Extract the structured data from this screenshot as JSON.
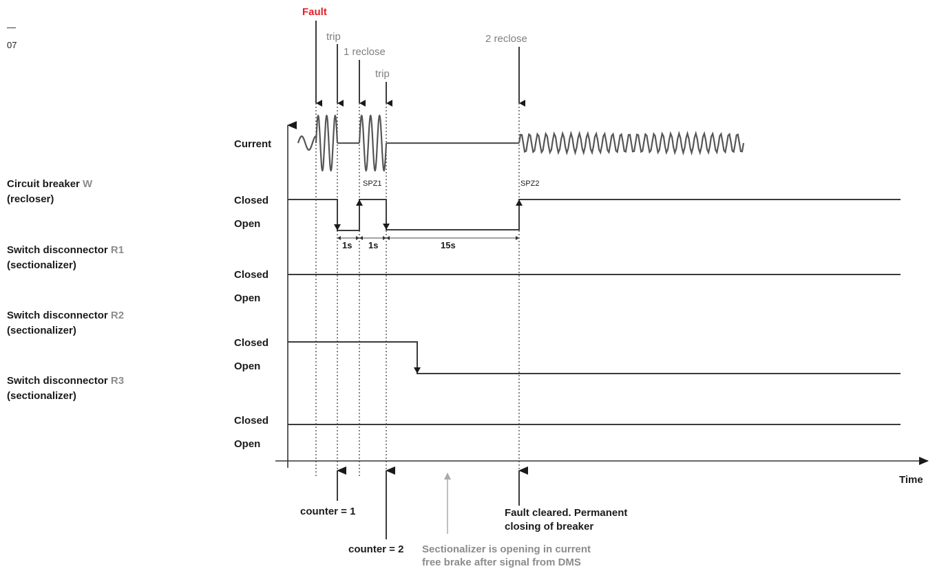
{
  "figure": {
    "number_mark": "—",
    "number": "07"
  },
  "devices": [
    {
      "name": "Circuit breaker ",
      "tag": "W",
      "role": "(recloser)"
    },
    {
      "name": "Switch disconnector ",
      "tag": "R1",
      "role": "(sectionalizer)"
    },
    {
      "name": "Switch disconnector ",
      "tag": "R2",
      "role": "(sectionalizer)"
    },
    {
      "name": "Switch disconnector ",
      "tag": "R3",
      "role": "(sectionalizer)"
    }
  ],
  "row_labels": {
    "current": "Current",
    "closed": "Closed",
    "open": "Open"
  },
  "events": {
    "fault": "Fault",
    "trip1": "trip",
    "reclose1": "1 reclose",
    "trip2": "trip",
    "reclose2": "2 reclose"
  },
  "markers": {
    "spz1": "SPZ1",
    "spz2": "SPZ2"
  },
  "intervals": [
    "1s",
    "1s",
    "15s"
  ],
  "axis": {
    "x_label": "Time"
  },
  "notes": {
    "counter1": "counter = 1",
    "counter2": "counter = 2",
    "cleared_line1": "Fault cleared. Permanent",
    "cleared_line2": "closing of breaker",
    "sectionalizer_line1": "Sectionalizer is opening in current",
    "sectionalizer_line2": "free brake after signal from DMS"
  },
  "colors": {
    "fault": "#e4202a",
    "event_label": "#7f7f7f",
    "device_tag": "#8c8c8c",
    "line": "#3a3a3a"
  }
}
